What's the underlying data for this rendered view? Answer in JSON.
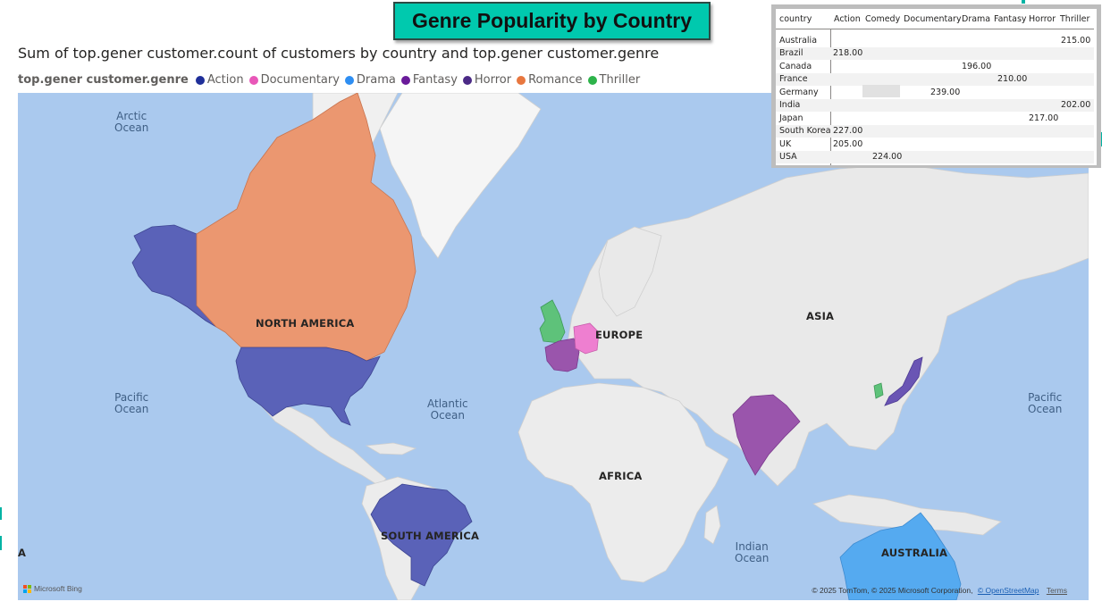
{
  "banner": {
    "title": "Genre Popularity by Country"
  },
  "map_visual": {
    "title": "Sum of top.gener customer.count of customers by country and top.gener customer.genre",
    "legend_title": "top.gener customer.genre",
    "legend": [
      {
        "label": "Action",
        "color": "#1f2f99"
      },
      {
        "label": "Documentary",
        "color": "#e857b8"
      },
      {
        "label": "Drama",
        "color": "#2e8ef2"
      },
      {
        "label": "Fantasy",
        "color": "#6a1b9a"
      },
      {
        "label": "Horror",
        "color": "#4b2a86"
      },
      {
        "label": "Romance",
        "color": "#e8773f"
      },
      {
        "label": "Thriller",
        "color": "#2db34a"
      }
    ],
    "ocean_labels": {
      "arctic": "Arctic\nOcean",
      "pacific_left": "Pacific\nOcean",
      "atlantic": "Atlantic\nOcean",
      "indian": "Indian\nOcean",
      "pacific_right": "Pacific\nOcean"
    },
    "continent_labels": {
      "north_america": "NORTH AMERICA",
      "europe": "EUROPE",
      "asia": "ASIA",
      "africa": "AFRICA",
      "south_america": "SOUTH AMERICA",
      "australia": "AUSTRALIA",
      "edge_a": "A"
    },
    "bing_label": "Microsoft Bing",
    "attribution": "© 2025 TomTom, © 2025 Microsoft Corporation,",
    "attribution_link": "© OpenStreetMap",
    "terms": "Terms",
    "colors": {
      "water": "#aac9ee",
      "land": "#e9e9e9",
      "action": "#5a62b8",
      "romance": "#eb9770",
      "documentary": "#ee7fd0",
      "fantasy": "#9a55ac",
      "thriller": "#5ec27a",
      "horror": "#6a55b4",
      "drama": "#55aaf0"
    }
  },
  "matrix": {
    "columns": [
      "country",
      "Action",
      "Comedy",
      "Documentary",
      "Drama",
      "Fantasy",
      "Horror",
      "Thriller"
    ],
    "rows": [
      {
        "country": "Australia",
        "value": "215.00",
        "column": "Thriller"
      },
      {
        "country": "Brazil",
        "value": "218.00",
        "column": "Action"
      },
      {
        "country": "Canada",
        "value": "196.00",
        "column": "Documentary"
      },
      {
        "country": "France",
        "value": "210.00",
        "column": "Fantasy"
      },
      {
        "country": "Germany",
        "value": "239.00",
        "column": "Comedy"
      },
      {
        "country": "India",
        "value": "202.00",
        "column": "Thriller"
      },
      {
        "country": "Japan",
        "value": "217.00",
        "column": "Horror"
      },
      {
        "country": "South Korea",
        "value": "227.00",
        "column": "Action"
      },
      {
        "country": "UK",
        "value": "205.00",
        "column": "Action"
      },
      {
        "country": "USA",
        "value": "224.00",
        "column": "Comedy"
      }
    ]
  }
}
